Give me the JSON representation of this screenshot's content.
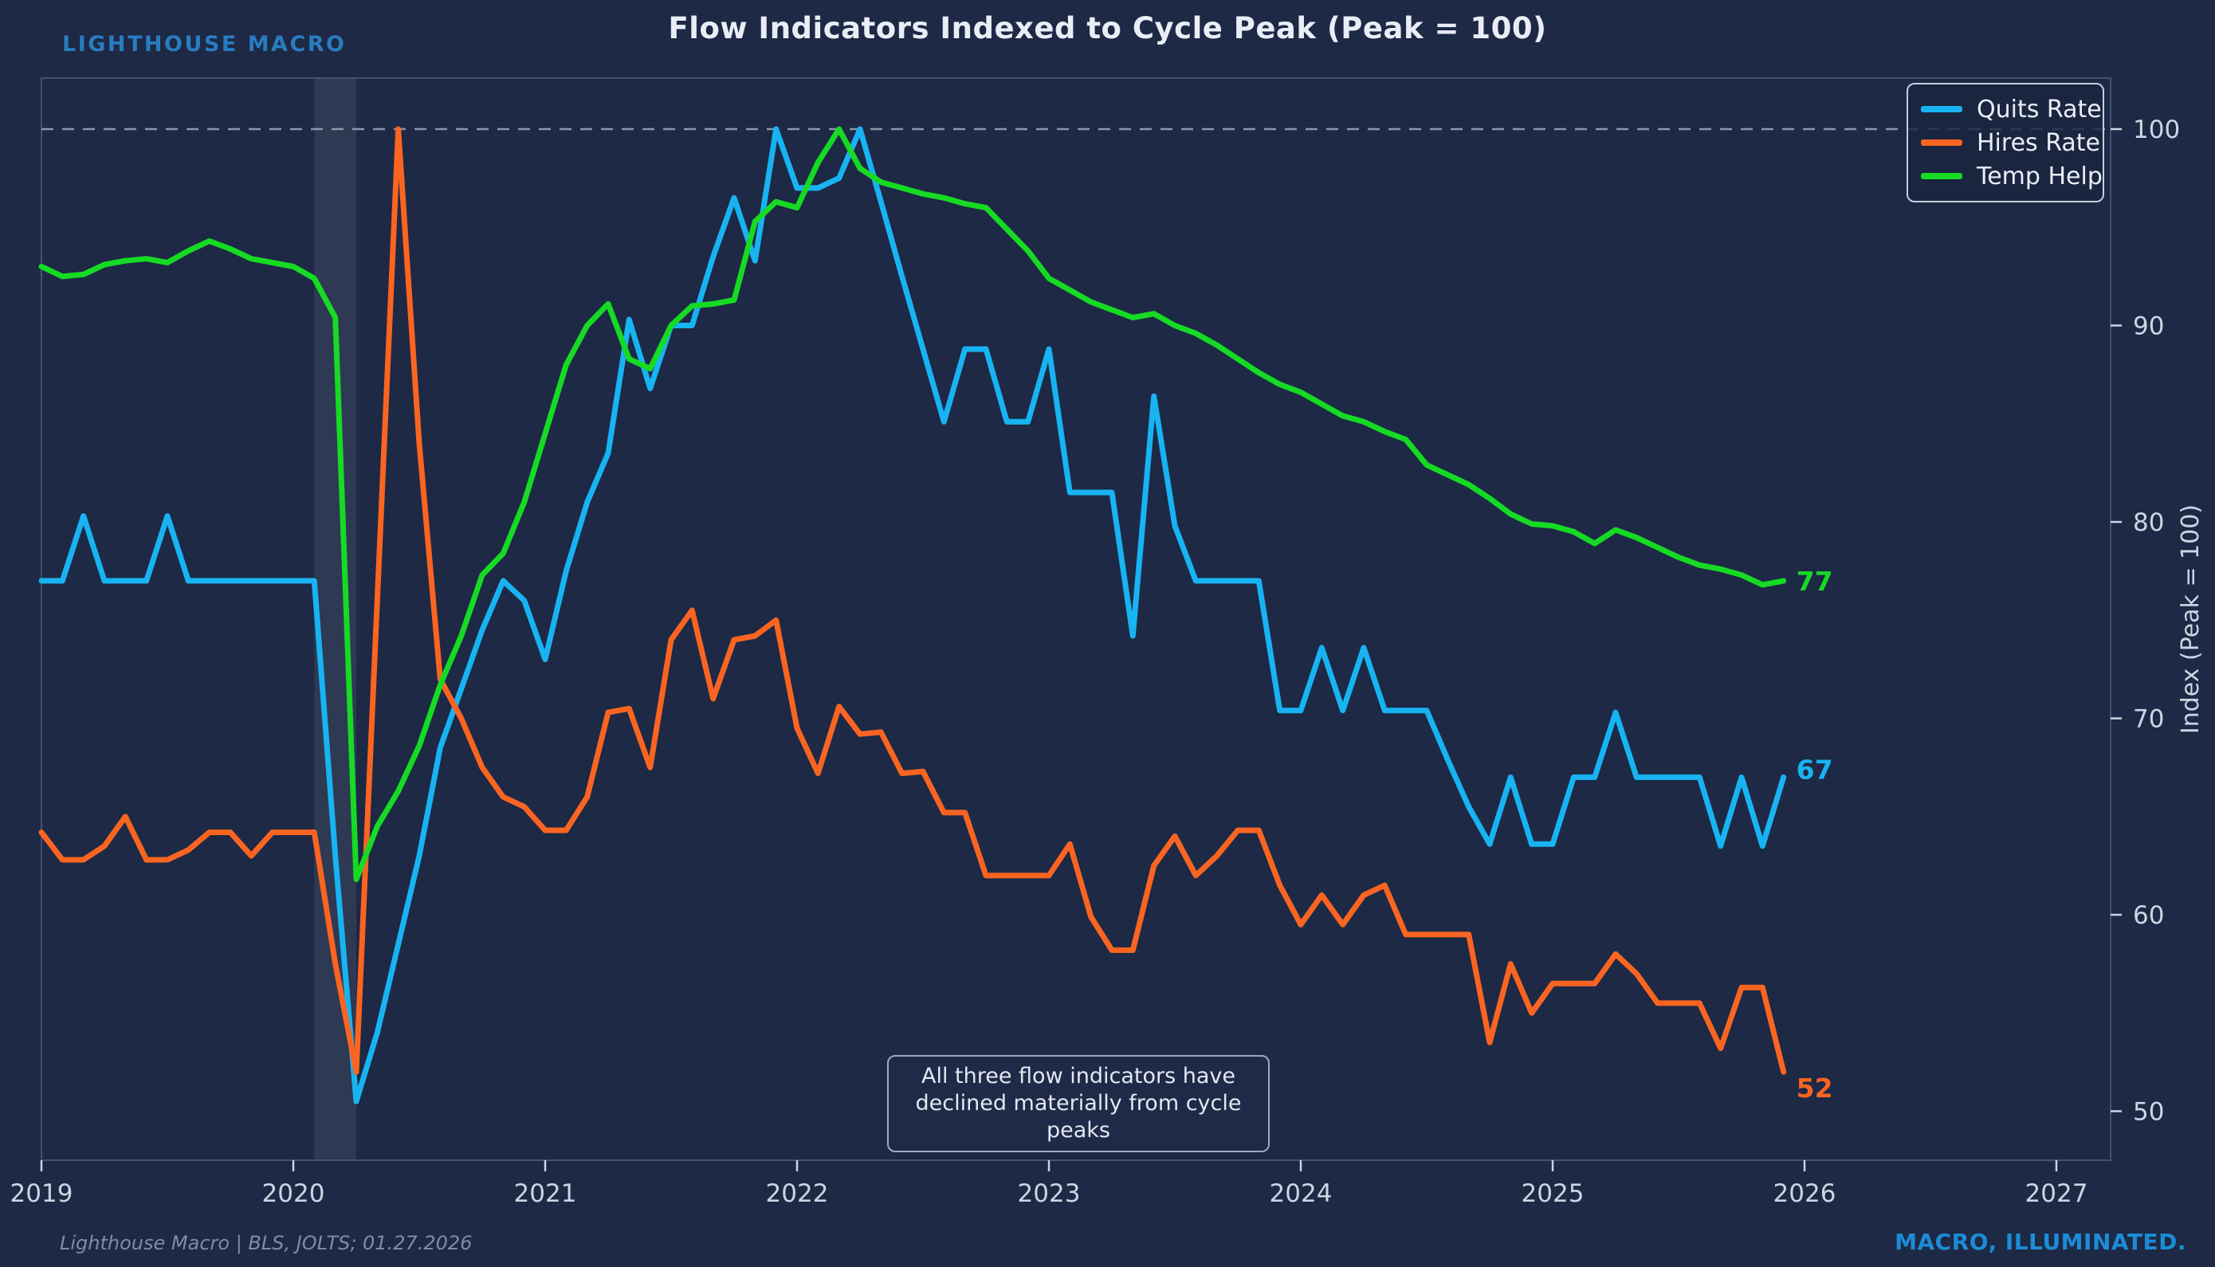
{
  "header": {
    "brand": "LIGHTHOUSE MACRO",
    "title": "Flow Indicators Indexed to Cycle Peak (Peak = 100)"
  },
  "footer": {
    "source": "Lighthouse Macro | BLS, JOLTS; 01.27.2026",
    "tagline": "MACRO, ILLUMINATED."
  },
  "annotation": {
    "line1": "All three flow indicators have",
    "line2": "declined materially from cycle peaks"
  },
  "colors": {
    "background": "#1d2945",
    "quits": "#18b3f2",
    "hires": "#f96521",
    "temp": "#16da24",
    "peak_dash": "#a9b3c2",
    "axis_text": "#ccd5e2",
    "spine": "#4d5c7a",
    "recession_band": "rgba(255,255,255,0.08)"
  },
  "chart_data": {
    "type": "line",
    "title": "Flow Indicators Indexed to Cycle Peak (Peak = 100)",
    "xlabel": "",
    "ylabel": "Index (Peak = 100)",
    "x_start_month": "2019-01",
    "x_end_month": "2025-12",
    "x_frequency": "monthly",
    "x_ticks": [
      2019,
      2020,
      2021,
      2022,
      2023,
      2024,
      2025,
      2026,
      2027
    ],
    "y_ticks": [
      50,
      60,
      70,
      80,
      90,
      100
    ],
    "ylim": [
      47.2,
      103.0
    ],
    "xlim_years": [
      2019.0,
      2027.22
    ],
    "grid": "off",
    "peak_reference_line": 100,
    "recession_band_years": [
      2020.083,
      2020.25
    ],
    "legend_position": "upper right",
    "series": [
      {
        "name": "Quits Rate",
        "color": "#18b3f2",
        "end_label": "67",
        "values": [
          77,
          77,
          80.3,
          77,
          77,
          77,
          80.3,
          77,
          77,
          77,
          77,
          77,
          77,
          77,
          63,
          50.5,
          54,
          58.5,
          63,
          68.5,
          71.5,
          74.5,
          77,
          76,
          73,
          77.5,
          81,
          83.5,
          90.3,
          86.8,
          90,
          90,
          93.5,
          96.5,
          93.3,
          100,
          97,
          97,
          97.5,
          100,
          96.3,
          92.5,
          88.8,
          85.1,
          88.8,
          88.8,
          85.1,
          85.1,
          88.8,
          81.5,
          81.5,
          81.5,
          74.2,
          86.4,
          79.8,
          77,
          77,
          77,
          77,
          70.4,
          70.4,
          73.6,
          70.4,
          73.6,
          70.4,
          70.4,
          70.4,
          67.9,
          65.5,
          63.6,
          67,
          63.6,
          63.6,
          67,
          67,
          70.3,
          67,
          67,
          67,
          67,
          63.5,
          67,
          63.5,
          67
        ]
      },
      {
        "name": "Hires Rate",
        "color": "#f96521",
        "end_label": "52",
        "values": [
          64.2,
          62.8,
          62.8,
          63.5,
          65,
          62.8,
          62.8,
          63.3,
          64.2,
          64.2,
          63,
          64.2,
          64.2,
          64.2,
          57.5,
          52,
          76,
          100,
          84,
          72,
          70,
          67.5,
          66,
          65.5,
          64.3,
          64.3,
          66,
          70.3,
          70.5,
          67.5,
          74,
          75.5,
          71,
          74,
          74.2,
          75,
          69.5,
          67.2,
          70.6,
          69.2,
          69.3,
          67.2,
          67.3,
          65.2,
          65.2,
          62,
          62,
          62,
          62,
          63.6,
          59.9,
          58.2,
          58.2,
          62.5,
          64,
          62,
          63,
          64.3,
          64.3,
          61.5,
          59.5,
          61,
          59.5,
          61,
          61.5,
          59,
          59,
          59,
          59,
          53.5,
          57.5,
          55,
          56.5,
          56.5,
          56.5,
          58,
          57,
          55.5,
          55.5,
          55.5,
          53.2,
          56.3,
          56.3,
          52
        ]
      },
      {
        "name": "Temp Help",
        "color": "#16da24",
        "end_label": "77",
        "values": [
          93,
          92.5,
          92.6,
          93.1,
          93.3,
          93.4,
          93.2,
          93.8,
          94.3,
          93.9,
          93.4,
          93.2,
          93,
          92.4,
          90.4,
          61.8,
          64.5,
          66.3,
          68.6,
          71.7,
          74.2,
          77.3,
          78.4,
          81,
          84.5,
          88,
          90,
          91.1,
          88.3,
          87.8,
          90,
          91,
          91.1,
          91.3,
          95.3,
          96.3,
          96,
          98.3,
          100,
          98,
          97.3,
          97,
          96.7,
          96.5,
          96.2,
          96,
          94.9,
          93.8,
          92.4,
          91.8,
          91.2,
          90.8,
          90.4,
          90.6,
          90,
          89.6,
          89,
          88.3,
          87.6,
          87,
          86.6,
          86,
          85.4,
          85.1,
          84.6,
          84.2,
          82.9,
          82.4,
          81.9,
          81.2,
          80.4,
          79.9,
          79.8,
          79.5,
          78.9,
          79.6,
          79.2,
          78.7,
          78.2,
          77.8,
          77.6,
          77.3,
          76.8,
          77
        ]
      }
    ]
  }
}
